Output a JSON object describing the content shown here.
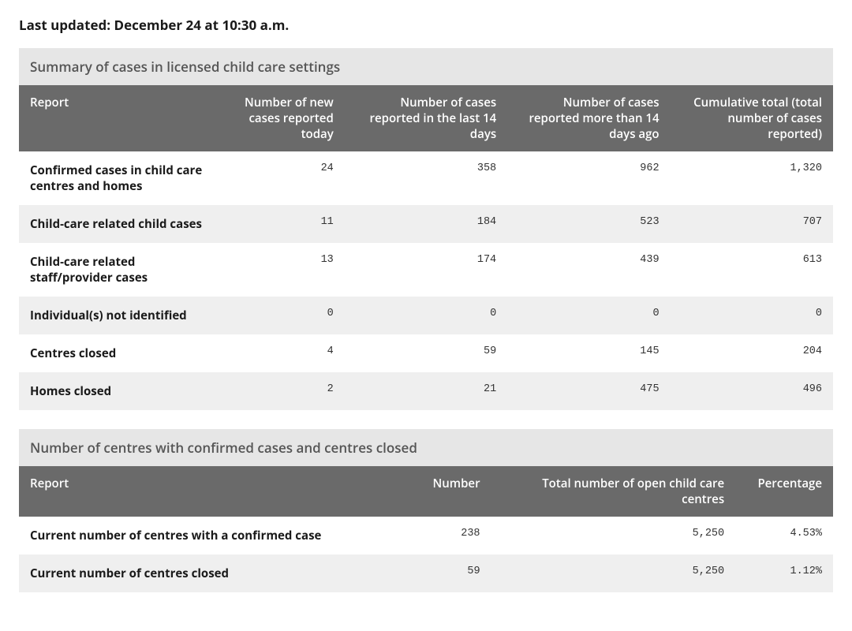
{
  "last_updated": "Last updated: December 24 at 10:30 a.m.",
  "colors": {
    "caption_bg": "#e6e6e6",
    "header_bg": "#6a6a6a",
    "header_text": "#ffffff",
    "row_odd_bg": "#ffffff",
    "row_even_bg": "#efefef",
    "text": "#333333",
    "label_text": "#1a1a1a"
  },
  "typography": {
    "base_family": "Open Sans / Segoe UI / Arial",
    "mono_family": "Menlo / Consolas / Courier New",
    "title_fontsize_pt": 13,
    "header_fontsize_pt": 11,
    "body_fontsize_pt": 11,
    "mono_fontsize_pt": 10
  },
  "table1": {
    "type": "table",
    "caption": "Summary of cases in licensed child care settings",
    "columns": [
      "Report",
      "Number of new cases reported today",
      "Number of cases reported in the last 14 days",
      "Number of cases reported more than 14 days ago",
      "Cumulative total (total number of cases reported)"
    ],
    "col_widths_pct": [
      24,
      16,
      20,
      20,
      20
    ],
    "col_align": [
      "left",
      "right",
      "right",
      "right",
      "right"
    ],
    "rows": [
      {
        "label": "Confirmed cases in child care centres and homes",
        "vals": [
          "24",
          "358",
          "962",
          "1,320"
        ]
      },
      {
        "label": "Child-care related child cases",
        "vals": [
          "11",
          "184",
          "523",
          "707"
        ]
      },
      {
        "label": "Child-care related staff/provider cases",
        "vals": [
          "13",
          "174",
          "439",
          "613"
        ]
      },
      {
        "label": "Individual(s) not identified",
        "vals": [
          "0",
          "0",
          "0",
          "0"
        ]
      },
      {
        "label": "Centres closed",
        "vals": [
          "4",
          "59",
          "145",
          "204"
        ]
      },
      {
        "label": "Homes closed",
        "vals": [
          "2",
          "21",
          "475",
          "496"
        ]
      }
    ]
  },
  "table2": {
    "type": "table",
    "caption": "Number of centres with confirmed cases and centres closed",
    "columns": [
      "Report",
      "Number",
      "Total number of open child care centres",
      "Percentage"
    ],
    "col_widths_pct": [
      46,
      12,
      30,
      12
    ],
    "col_align": [
      "left",
      "right",
      "right",
      "right"
    ],
    "rows": [
      {
        "label": "Current number of centres with a confirmed case",
        "vals": [
          "238",
          "5,250",
          "4.53%"
        ]
      },
      {
        "label": "Current number of centres closed",
        "vals": [
          "59",
          "5,250",
          "1.12%"
        ]
      }
    ]
  }
}
